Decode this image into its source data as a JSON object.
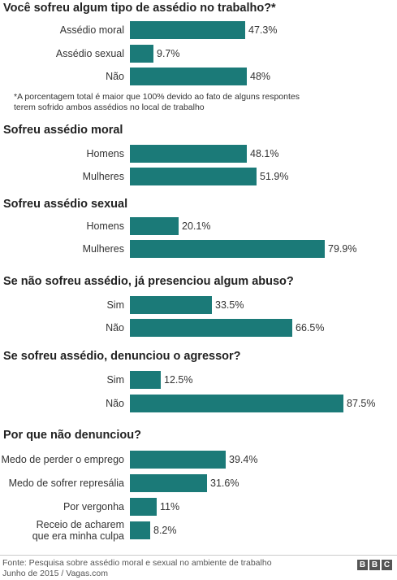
{
  "chart_data": [
    {
      "type": "bar",
      "orientation": "horizontal",
      "title": "Você sofreu algum tipo de assédio no trabalho?*",
      "categories": [
        "Assédio moral",
        "Assédio sexual",
        "Não"
      ],
      "values": [
        47.3,
        9.7,
        48
      ],
      "value_labels": [
        "47.3%",
        "9.7%",
        "48%"
      ],
      "note": "*A porcentagem total é maior que 100% devido ao fato de alguns respontes terem sofrido ambos assédios no local de trabalho"
    },
    {
      "type": "bar",
      "orientation": "horizontal",
      "title": "Sofreu assédio moral",
      "categories": [
        "Homens",
        "Mulheres"
      ],
      "values": [
        48.1,
        51.9
      ],
      "value_labels": [
        "48.1%",
        "51.9%"
      ]
    },
    {
      "type": "bar",
      "orientation": "horizontal",
      "title": "Sofreu assédio sexual",
      "categories": [
        "Homens",
        "Mulheres"
      ],
      "values": [
        20.1,
        79.9
      ],
      "value_labels": [
        "20.1%",
        "79.9%"
      ]
    },
    {
      "type": "bar",
      "orientation": "horizontal",
      "title": "Se não sofreu assédio, já presenciou algum abuso?",
      "categories": [
        "Sim",
        "Não"
      ],
      "values": [
        33.5,
        66.5
      ],
      "value_labels": [
        "33.5%",
        "66.5%"
      ]
    },
    {
      "type": "bar",
      "orientation": "horizontal",
      "title": "Se sofreu assédio, denunciou o agressor?",
      "categories": [
        "Sim",
        "Não"
      ],
      "values": [
        12.5,
        87.5
      ],
      "value_labels": [
        "12.5%",
        "87.5%"
      ]
    },
    {
      "type": "bar",
      "orientation": "horizontal",
      "title": "Por que não denunciou?",
      "categories": [
        "Medo de perder o emprego",
        "Medo de sofrer represália",
        "Por vergonha",
        "Receio de acharem\nque era minha culpa"
      ],
      "values": [
        39.4,
        31.6,
        11,
        8.2
      ],
      "value_labels": [
        "39.4%",
        "31.6%",
        "11%",
        "8.2%"
      ]
    }
  ],
  "colors": {
    "bar": "#1b7a78",
    "text": "#222222"
  },
  "footer": {
    "source_line1": "Fonte: Pesquisa sobre assédio moral e sexual no ambiente de trabalho",
    "source_line2": "Junho de 2015 / Vagas.com",
    "logo_letters": [
      "B",
      "B",
      "C"
    ]
  }
}
